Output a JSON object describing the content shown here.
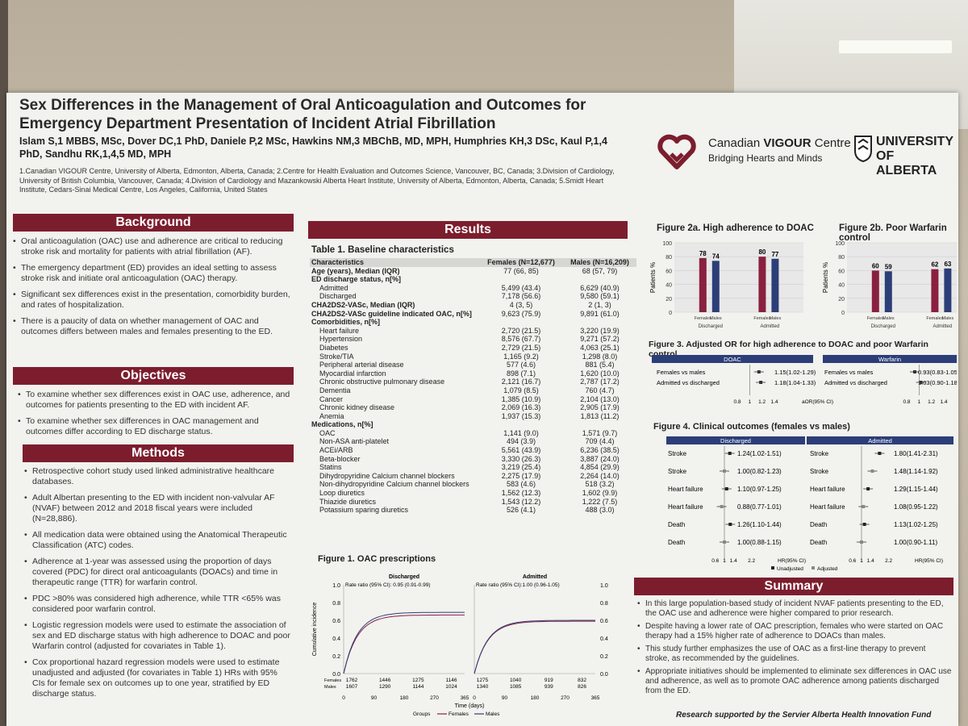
{
  "title": "Sex Differences in the Management of Oral Anticoagulation and Outcomes for Emergency Department Presentation of Incident Atrial Fibrillation",
  "authors": "Islam S,1 MBBS, MSc, Dover DC,1 PhD, Daniele P,2 MSc, Hawkins NM,3 MBChB, MD, MPH, Humphries KH,3 DSc, Kaul P,1,4 PhD, Sandhu RK,1,4,5 MD, MPH",
  "affiliations": "1.Canadian VIGOUR Centre, University of Alberta, Edmonton, Alberta, Canada; 2.Centre for Health Evaluation and Outcomes Science, Vancouver, BC, Canada; 3.Division of Cardiology, University of British Columbia, Vancouver, Canada; 4.Division of Cardiology and Mazankowski Alberta Heart Institute, University of Alberta, Edmonton, Alberta, Canada; 5.Smidt Heart Institute, Cedars-Sinai Medical Centre, Los Angeles, California, United States",
  "logo": {
    "centre_prefix": "Canadian",
    "centre_bold": "VIGOUR",
    "centre_suffix": "Centre",
    "tagline": "Bridging Hearts and Minds",
    "university_line1": "UNIVERSITY",
    "university_line2": "OF ALBERTA"
  },
  "background": {
    "heading": "Background",
    "items": [
      "Oral anticoagulation (OAC) use and adherence are critical to reducing stroke risk and mortality for patients with atrial fibrillation (AF).",
      "The emergency department (ED) provides an ideal setting to assess stroke risk and initiate oral anticoagulation (OAC) therapy.",
      "Significant sex differences exist in the presentation, comorbidity burden, and rates of hospitalization.",
      "There is a paucity of data on whether management of OAC and outcomes differs between males and females presenting to the ED."
    ]
  },
  "objectives": {
    "heading": "Objectives",
    "items": [
      "To examine whether sex differences exist in OAC use, adherence, and outcomes for patients presenting to the ED with incident AF.",
      "To examine whether sex differences in OAC management and outcomes differ according to ED discharge status."
    ]
  },
  "methods": {
    "heading": "Methods",
    "items": [
      "Retrospective cohort study used linked administrative healthcare databases.",
      "Adult Albertan presenting to the ED with incident non-valvular AF (NVAF) between 2012 and 2018 fiscal years were included (N=28,886).",
      "All medication data were obtained using the Anatomical Therapeutic Classification (ATC) codes.",
      "Adherence at 1-year was assessed using the proportion of days covered (PDC) for direct oral anticoagulants (DOACs) and time in therapeutic range (TTR) for warfarin control.",
      "PDC >80% was considered high adherence, while TTR <65% was considered poor warfarin control.",
      "Logistic regression models were used to estimate the association of sex and ED discharge status with high adherence to DOAC and poor Warfarin control (adjusted for covariates in Table 1).",
      "Cox proportional hazard regression models were used to estimate unadjusted and adjusted (for covariates in Table 1) HRs with 95% CIs for female sex on outcomes up to one year, stratified by ED discharge status."
    ]
  },
  "results": {
    "heading": "Results"
  },
  "table1": {
    "title": "Table 1. Baseline characteristics",
    "headers": [
      "Characteristics",
      "Females (N=12,677)",
      "Males (N=16,209)"
    ],
    "rows": [
      {
        "s": "b",
        "c": [
          "Age (years), Median (IQR)",
          "77 (66, 85)",
          "68 (57, 79)"
        ]
      },
      {
        "s": "b",
        "c": [
          "ED discharge status, n[%]",
          "",
          ""
        ]
      },
      {
        "s": "i",
        "c": [
          "Admitted",
          "5,499 (43.4)",
          "6,629 (40.9)"
        ]
      },
      {
        "s": "i",
        "c": [
          "Discharged",
          "7,178 (56.6)",
          "9,580 (59.1)"
        ]
      },
      {
        "s": "b",
        "c": [
          "CHA2DS2-VASc, Median (IQR)",
          "4 (3, 5)",
          "2 (1, 3)"
        ]
      },
      {
        "s": "b",
        "c": [
          "CHA2DS2-VASc guideline indicated OAC, n[%]",
          "9,623 (75.9)",
          "9,891 (61.0)"
        ]
      },
      {
        "s": "b",
        "c": [
          "Comorbidities, n[%]",
          "",
          ""
        ]
      },
      {
        "s": "i",
        "c": [
          "Heart failure",
          "2,720 (21.5)",
          "3,220 (19.9)"
        ]
      },
      {
        "s": "i",
        "c": [
          "Hypertension",
          "8,576 (67.7)",
          "9,271 (57.2)"
        ]
      },
      {
        "s": "i",
        "c": [
          "Diabetes",
          "2,729 (21.5)",
          "4,063 (25.1)"
        ]
      },
      {
        "s": "i",
        "c": [
          "Stroke/TIA",
          "1,165 (9.2)",
          "1,298 (8.0)"
        ]
      },
      {
        "s": "i",
        "c": [
          "Peripheral arterial disease",
          "577 (4.6)",
          "881 (5.4)"
        ]
      },
      {
        "s": "i",
        "c": [
          "Myocardial infarction",
          "898 (7.1)",
          "1,620 (10.0)"
        ]
      },
      {
        "s": "i",
        "c": [
          "Chronic obstructive pulmonary disease",
          "2,121 (16.7)",
          "2,787 (17.2)"
        ]
      },
      {
        "s": "i",
        "c": [
          "Dementia",
          "1,079 (8.5)",
          "760 (4.7)"
        ]
      },
      {
        "s": "i",
        "c": [
          "Cancer",
          "1,385 (10.9)",
          "2,104 (13.0)"
        ]
      },
      {
        "s": "i",
        "c": [
          "Chronic kidney disease",
          "2,069 (16.3)",
          "2,905 (17.9)"
        ]
      },
      {
        "s": "i",
        "c": [
          "Anemia",
          "1,937 (15.3)",
          "1,813 (11.2)"
        ]
      },
      {
        "s": "b",
        "c": [
          "Medications, n[%]",
          "",
          ""
        ]
      },
      {
        "s": "i",
        "c": [
          "OAC",
          "1,141 (9.0)",
          "1,571 (9.7)"
        ]
      },
      {
        "s": "i",
        "c": [
          "Non-ASA anti-platelet",
          "494 (3.9)",
          "709 (4.4)"
        ]
      },
      {
        "s": "i",
        "c": [
          "ACEi/ARB",
          "5,561 (43.9)",
          "6,236 (38.5)"
        ]
      },
      {
        "s": "i",
        "c": [
          "Beta-blocker",
          "3,330 (26.3)",
          "3,887 (24.0)"
        ]
      },
      {
        "s": "i",
        "c": [
          "Statins",
          "3,219 (25.4)",
          "4,854 (29.9)"
        ]
      },
      {
        "s": "i",
        "c": [
          "Dihydropyridine Calcium channel blockers",
          "2,275 (17.9)",
          "2,264 (14.0)"
        ]
      },
      {
        "s": "i",
        "c": [
          "Non-dihydropyridine Calcium channel blockers",
          "583 (4.6)",
          "518 (3.2)"
        ]
      },
      {
        "s": "i",
        "c": [
          "Loop diuretics",
          "1,562 (12.3)",
          "1,602 (9.9)"
        ]
      },
      {
        "s": "i",
        "c": [
          "Thiazide diuretics",
          "1,543 (12.2)",
          "1,222 (7.5)"
        ]
      },
      {
        "s": "i",
        "c": [
          "Potassium sparing diuretics",
          "526 (4.1)",
          "488 (3.0)"
        ]
      }
    ]
  },
  "figure1": {
    "title": "Figure 1. OAC prescriptions",
    "ylabel": "Cumulative incidence",
    "xlabel": "Time (days)",
    "legend": [
      "Groups",
      "Females",
      "Males"
    ],
    "panels": [
      {
        "name": "Discharged",
        "rr": "Rate ratio (95% CI): 0.95 (0.91-0.99)",
        "risk_f": [
          "1762",
          "1446",
          "1275",
          "1146"
        ],
        "risk_m": [
          "1607",
          "1290",
          "1144",
          "1024"
        ]
      },
      {
        "name": "Admitted",
        "rr": "Rate ratio (95% CI):1.00 (0.96-1.05)",
        "risk_f": [
          "1275",
          "1040",
          "919",
          "832"
        ],
        "risk_m": [
          "1340",
          "1085",
          "939",
          "826"
        ]
      }
    ],
    "risk_labels": [
      "Females",
      "Males"
    ],
    "yticks": [
      "1.0",
      "0.8",
      "0.6",
      "0.4",
      "0.2",
      "0.0"
    ],
    "xticks": [
      "0",
      "90",
      "180",
      "270",
      "365"
    ]
  },
  "figure2a": {
    "title": "Figure 2a. High adherence to DOAC",
    "ylabel": "Patients %",
    "legend": [
      "Females",
      "Males"
    ],
    "groups": [
      "Discharged",
      "Admitted"
    ],
    "values": [
      [
        78,
        74
      ],
      [
        80,
        77
      ]
    ],
    "yticks": [
      "100",
      "80",
      "60",
      "40",
      "20",
      "0"
    ]
  },
  "figure2b": {
    "title": "Figure 2b. Poor Warfarin control",
    "ylabel": "Patients %",
    "legend": [
      "Females",
      "Males"
    ],
    "groups": [
      "Discharged",
      "Admitted"
    ],
    "values": [
      [
        60,
        59
      ],
      [
        62,
        63
      ]
    ],
    "yticks": [
      "100",
      "80",
      "60",
      "40",
      "20",
      "0"
    ]
  },
  "figure3": {
    "title": "Figure 3. Adjusted OR for high adherence to DOAC and poor Warfarin control",
    "panels": [
      {
        "name": "DOAC",
        "rows": [
          [
            "Females vs males",
            "1.15(1.02-1.29)"
          ],
          [
            "Admitted vs discharged",
            "1.18(1.04-1.33)"
          ]
        ]
      },
      {
        "name": "Warfarin",
        "rows": [
          [
            "Females vs males",
            "0.93(0.83-1.05)"
          ],
          [
            "Admitted vs discharged",
            "1.03(0.90-1.18)"
          ]
        ]
      }
    ],
    "xticks": [
      "0.8",
      "1",
      "1.2",
      "1.4"
    ],
    "xlabel": "aOR(95% CI)"
  },
  "figure4": {
    "title": "Figure 4. Clinical outcomes (females vs males)",
    "panels": [
      {
        "name": "Discharged",
        "rows": [
          [
            "Stroke",
            "1.24(1.02-1.51)"
          ],
          [
            "Stroke",
            "1.00(0.82-1.23)"
          ],
          [
            "Heart failure",
            "1.10(0.97-1.25)"
          ],
          [
            "Heart failure",
            "0.88(0.77-1.01)"
          ],
          [
            "Death",
            "1.26(1.10-1.44)"
          ],
          [
            "Death",
            "1.00(0.88-1.15)"
          ]
        ]
      },
      {
        "name": "Admitted",
        "rows": [
          [
            "Stroke",
            "1.80(1.41-2.31)"
          ],
          [
            "Stroke",
            "1.48(1.14-1.92)"
          ],
          [
            "Heart failure",
            "1.29(1.15-1.44)"
          ],
          [
            "Heart failure",
            "1.08(0.95-1.22)"
          ],
          [
            "Death",
            "1.13(1.02-1.25)"
          ],
          [
            "Death",
            "1.00(0.90-1.11)"
          ]
        ]
      }
    ],
    "xticks": [
      "0.6",
      "1",
      "1.4",
      "2.2"
    ],
    "xlabel": "HR(95% CI)",
    "legend": [
      "Unadjusted",
      "Adjusted"
    ]
  },
  "summary": {
    "heading": "Summary",
    "items": [
      "In this large population-based study of incident NVAF patients presenting to the ED, the OAC use and adherence were higher compared to prior research.",
      "Despite having a lower rate of OAC prescription, females who were started on OAC therapy had a 15% higher rate of adherence to DOACs than males.",
      "This study further emphasizes the use of OAC as a first-line therapy to prevent stroke, as recommended by the guidelines.",
      "Appropriate initiatives should be implemented to eliminate sex differences in OAC use and adherence, as well as to promote OAC adherence among patients discharged from the ED."
    ]
  },
  "funding": {
    "prefix": "Research",
    "text": "supported by the Servier Alberta Health Innovation Fund"
  },
  "colors": {
    "maroon": "#7c1d2d",
    "navy": "#2c3e78",
    "female": "#8a2040",
    "male": "#2c3e78"
  }
}
